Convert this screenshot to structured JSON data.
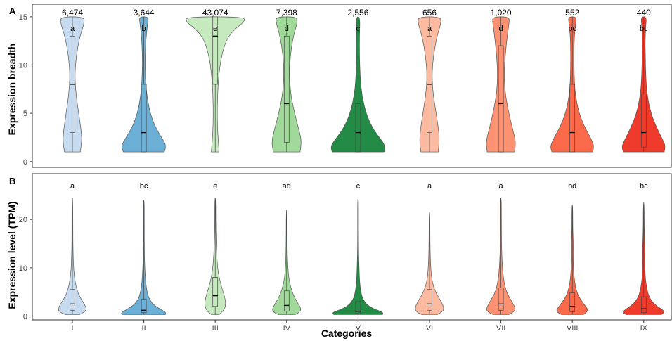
{
  "chart_data": [
    {
      "panel_label": "A",
      "type": "violin",
      "ylabel": "Expression breadth",
      "ylim": [
        -0.6,
        16.3
      ],
      "yticks": [
        0,
        5,
        10,
        15
      ],
      "categories": [
        "I",
        "II",
        "III",
        "IV",
        "V",
        "VI",
        "VII",
        "VIII",
        "IX"
      ],
      "counts": [
        "6,474",
        "3,644",
        "43,074",
        "7,398",
        "2,556",
        "656",
        "1,020",
        "552",
        "440"
      ],
      "letters": [
        "a",
        "b",
        "e",
        "d",
        "c",
        "a",
        "d",
        "bc",
        "bc"
      ],
      "colors": [
        "#c6dbef",
        "#6baed6",
        "#c7e9c0",
        "#a1d99b",
        "#238b45",
        "#fcbba1",
        "#fc9272",
        "#fb6a4a",
        "#ef3b2c"
      ],
      "series": [
        {
          "median": 8,
          "q1": 3,
          "q3": 13,
          "min": 1,
          "max": 15,
          "shape": [
            [
              1,
              0.2
            ],
            [
              2,
              0.24
            ],
            [
              3,
              0.23
            ],
            [
              5,
              0.16
            ],
            [
              7,
              0.09
            ],
            [
              9,
              0.06
            ],
            [
              11,
              0.1
            ],
            [
              13,
              0.19
            ],
            [
              14.3,
              0.3
            ],
            [
              15,
              0.3
            ]
          ]
        },
        {
          "median": 3,
          "q1": 1,
          "q3": 8,
          "min": 1,
          "max": 15,
          "shape": [
            [
              1,
              0.52
            ],
            [
              1.6,
              0.58
            ],
            [
              2.5,
              0.45
            ],
            [
              3.5,
              0.3
            ],
            [
              5,
              0.16
            ],
            [
              7,
              0.07
            ],
            [
              9,
              0.04
            ],
            [
              11,
              0.035
            ],
            [
              13,
              0.06
            ],
            [
              14.4,
              0.1
            ],
            [
              15,
              0.12
            ]
          ]
        },
        {
          "median": 13,
          "q1": 8,
          "q3": 15,
          "min": 1,
          "max": 15,
          "shape": [
            [
              1,
              0.1
            ],
            [
              3,
              0.06
            ],
            [
              5,
              0.05
            ],
            [
              7,
              0.06
            ],
            [
              9,
              0.09
            ],
            [
              11,
              0.16
            ],
            [
              12.8,
              0.3
            ],
            [
              13.8,
              0.52
            ],
            [
              14.5,
              0.75
            ],
            [
              15,
              0.73
            ]
          ]
        },
        {
          "median": 6,
          "q1": 2,
          "q3": 13,
          "min": 1,
          "max": 15,
          "shape": [
            [
              1,
              0.34
            ],
            [
              2,
              0.38
            ],
            [
              3,
              0.33
            ],
            [
              5,
              0.2
            ],
            [
              7,
              0.1
            ],
            [
              9,
              0.07
            ],
            [
              11,
              0.09
            ],
            [
              13,
              0.17
            ],
            [
              14.4,
              0.27
            ],
            [
              15,
              0.27
            ]
          ]
        },
        {
          "median": 3,
          "q1": 1,
          "q3": 6,
          "min": 1,
          "max": 15,
          "shape": [
            [
              1,
              0.66
            ],
            [
              1.6,
              0.7
            ],
            [
              2.5,
              0.54
            ],
            [
              3.5,
              0.36
            ],
            [
              5,
              0.2
            ],
            [
              7,
              0.09
            ],
            [
              9,
              0.05
            ],
            [
              11,
              0.035
            ],
            [
              13,
              0.035
            ],
            [
              15,
              0.05
            ]
          ]
        },
        {
          "median": 8,
          "q1": 3,
          "q3": 13,
          "min": 1,
          "max": 15,
          "shape": [
            [
              1,
              0.22
            ],
            [
              2,
              0.25
            ],
            [
              3,
              0.24
            ],
            [
              5,
              0.17
            ],
            [
              7,
              0.09
            ],
            [
              9,
              0.06
            ],
            [
              11,
              0.1
            ],
            [
              13,
              0.19
            ],
            [
              14.3,
              0.29
            ],
            [
              15,
              0.29
            ]
          ]
        },
        {
          "median": 6,
          "q1": 1,
          "q3": 12,
          "min": 1,
          "max": 15,
          "shape": [
            [
              1,
              0.35
            ],
            [
              2,
              0.38
            ],
            [
              3,
              0.32
            ],
            [
              5,
              0.2
            ],
            [
              7,
              0.11
            ],
            [
              9,
              0.08
            ],
            [
              11,
              0.11
            ],
            [
              13,
              0.16
            ],
            [
              14.4,
              0.21
            ],
            [
              15,
              0.21
            ]
          ]
        },
        {
          "median": 3,
          "q1": 1,
          "q3": 8,
          "min": 1,
          "max": 15,
          "shape": [
            [
              1,
              0.52
            ],
            [
              1.6,
              0.56
            ],
            [
              2.5,
              0.46
            ],
            [
              3.5,
              0.32
            ],
            [
              5,
              0.17
            ],
            [
              7,
              0.07
            ],
            [
              9,
              0.045
            ],
            [
              11,
              0.04
            ],
            [
              13,
              0.05
            ],
            [
              14.4,
              0.09
            ],
            [
              15,
              0.1
            ]
          ]
        },
        {
          "median": 3,
          "q1": 1.5,
          "q3": 7,
          "min": 1,
          "max": 15,
          "shape": [
            [
              1,
              0.52
            ],
            [
              1.6,
              0.56
            ],
            [
              2.5,
              0.45
            ],
            [
              3.5,
              0.33
            ],
            [
              5,
              0.18
            ],
            [
              7,
              0.08
            ],
            [
              9,
              0.05
            ],
            [
              11,
              0.04
            ],
            [
              12.5,
              0.035
            ],
            [
              14,
              0.05
            ],
            [
              15,
              0.07
            ]
          ]
        }
      ]
    },
    {
      "panel_label": "B",
      "type": "violin",
      "ylabel": "Expression level (TPM)",
      "xlabel": "Categories",
      "ylim": [
        -0.8,
        29.5
      ],
      "yticks": [
        0,
        10,
        20
      ],
      "categories": [
        "I",
        "II",
        "III",
        "IV",
        "V",
        "VI",
        "VII",
        "VIII",
        "IX"
      ],
      "letters": [
        "a",
        "bc",
        "e",
        "ad",
        "c",
        "a",
        "a",
        "bd",
        "bc"
      ],
      "colors": [
        "#c6dbef",
        "#6baed6",
        "#c7e9c0",
        "#a1d99b",
        "#238b45",
        "#fcbba1",
        "#fc9272",
        "#fb6a4a",
        "#ef3b2c"
      ],
      "series": [
        {
          "median": 2.5,
          "q1": 1.2,
          "q3": 5.5,
          "min": 0.3,
          "max": 24.5,
          "shape": [
            [
              0.3,
              0.18
            ],
            [
              1,
              0.36
            ],
            [
              2,
              0.34
            ],
            [
              3.5,
              0.22
            ],
            [
              5,
              0.13
            ],
            [
              7,
              0.07
            ],
            [
              9,
              0.04
            ],
            [
              11,
              0.025
            ],
            [
              14,
              0.015
            ],
            [
              18,
              0.012
            ],
            [
              24.5,
              0.003
            ]
          ]
        },
        {
          "median": 1.2,
          "q1": 0.7,
          "q3": 3.5,
          "min": 0.3,
          "max": 24.0,
          "shape": [
            [
              0.3,
              0.55
            ],
            [
              0.7,
              0.58
            ],
            [
              1.5,
              0.4
            ],
            [
              2.5,
              0.22
            ],
            [
              4,
              0.11
            ],
            [
              6,
              0.06
            ],
            [
              8,
              0.04
            ],
            [
              10,
              0.025
            ],
            [
              14,
              0.012
            ],
            [
              20,
              0.008
            ],
            [
              24,
              0.002
            ]
          ]
        },
        {
          "median": 4.2,
          "q1": 2.0,
          "q3": 8.0,
          "min": 0.3,
          "max": 24.5,
          "shape": [
            [
              0.3,
              0.1
            ],
            [
              1.2,
              0.23
            ],
            [
              2.5,
              0.27
            ],
            [
              4,
              0.24
            ],
            [
              6,
              0.16
            ],
            [
              8,
              0.1
            ],
            [
              10,
              0.06
            ],
            [
              13,
              0.035
            ],
            [
              16,
              0.02
            ],
            [
              20,
              0.012
            ],
            [
              24.5,
              0.003
            ]
          ]
        },
        {
          "median": 2.2,
          "q1": 1.0,
          "q3": 5.2,
          "min": 0.3,
          "max": 22.0,
          "shape": [
            [
              0.3,
              0.22
            ],
            [
              1,
              0.37
            ],
            [
              2,
              0.34
            ],
            [
              3.5,
              0.22
            ],
            [
              5,
              0.14
            ],
            [
              7,
              0.07
            ],
            [
              9,
              0.04
            ],
            [
              12,
              0.02
            ],
            [
              16,
              0.012
            ],
            [
              22,
              0.003
            ]
          ]
        },
        {
          "median": 1.0,
          "q1": 0.5,
          "q3": 3.0,
          "min": 0.3,
          "max": 24.5,
          "shape": [
            [
              0.3,
              0.62
            ],
            [
              0.7,
              0.66
            ],
            [
              1.3,
              0.45
            ],
            [
              2.2,
              0.24
            ],
            [
              3.5,
              0.12
            ],
            [
              5,
              0.07
            ],
            [
              7,
              0.04
            ],
            [
              10,
              0.025
            ],
            [
              14,
              0.012
            ],
            [
              20,
              0.008
            ],
            [
              24.5,
              0.003
            ]
          ]
        },
        {
          "median": 2.5,
          "q1": 1.2,
          "q3": 5.5,
          "min": 0.3,
          "max": 21.5,
          "shape": [
            [
              0.3,
              0.2
            ],
            [
              1,
              0.36
            ],
            [
              2,
              0.36
            ],
            [
              3.5,
              0.26
            ],
            [
              5,
              0.15
            ],
            [
              7,
              0.07
            ],
            [
              9,
              0.04
            ],
            [
              12,
              0.02
            ],
            [
              16,
              0.012
            ],
            [
              21.5,
              0.003
            ]
          ]
        },
        {
          "median": 2.5,
          "q1": 1.2,
          "q3": 5.8,
          "min": 0.3,
          "max": 24.5,
          "shape": [
            [
              0.3,
              0.2
            ],
            [
              1,
              0.37
            ],
            [
              2,
              0.35
            ],
            [
              3.5,
              0.24
            ],
            [
              5,
              0.14
            ],
            [
              7,
              0.08
            ],
            [
              9,
              0.05
            ],
            [
              12,
              0.025
            ],
            [
              16,
              0.015
            ],
            [
              20,
              0.01
            ],
            [
              24.5,
              0.003
            ]
          ]
        },
        {
          "median": 2.0,
          "q1": 0.9,
          "q3": 4.8,
          "min": 0.3,
          "max": 23.0,
          "shape": [
            [
              0.3,
              0.28
            ],
            [
              1,
              0.42
            ],
            [
              2,
              0.34
            ],
            [
              3.5,
              0.2
            ],
            [
              5,
              0.11
            ],
            [
              7,
              0.06
            ],
            [
              9,
              0.035
            ],
            [
              12,
              0.02
            ],
            [
              15,
              0.025
            ],
            [
              18,
              0.01
            ],
            [
              23,
              0.003
            ]
          ]
        },
        {
          "median": 1.5,
          "q1": 0.7,
          "q3": 4.0,
          "min": 0.3,
          "max": 23.5,
          "shape": [
            [
              0.3,
              0.45
            ],
            [
              0.8,
              0.55
            ],
            [
              1.5,
              0.44
            ],
            [
              2.5,
              0.26
            ],
            [
              4,
              0.13
            ],
            [
              6,
              0.07
            ],
            [
              8,
              0.04
            ],
            [
              11,
              0.025
            ],
            [
              14,
              0.03
            ],
            [
              18,
              0.012
            ],
            [
              23.5,
              0.003
            ]
          ]
        }
      ]
    }
  ]
}
